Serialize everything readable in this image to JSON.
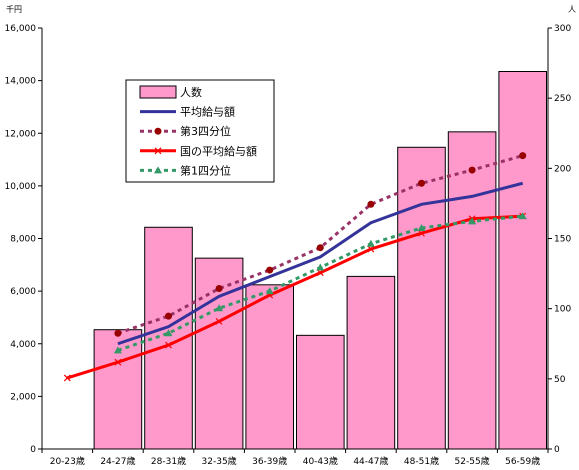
{
  "chart_data": {
    "type": "bar",
    "title": "",
    "y_left_unit": "千円",
    "y_right_unit": "人",
    "categories": [
      "20-23歳",
      "24-27歳",
      "28-31歳",
      "32-35歳",
      "36-39歳",
      "40-43歳",
      "44-47歳",
      "48-51歳",
      "52-55歳",
      "56-59歳"
    ],
    "ylim_left": [
      0,
      16000
    ],
    "ylim_right": [
      0,
      300
    ],
    "y_left_ticks": [
      "0",
      "2,000",
      "4,000",
      "6,000",
      "8,000",
      "10,000",
      "12,000",
      "14,000",
      "16,000"
    ],
    "y_right_ticks": [
      "0",
      "50",
      "100",
      "150",
      "200",
      "250",
      "300"
    ],
    "grid": false,
    "legend_position": "top-left",
    "series": [
      {
        "name": "人数",
        "kind": "bar",
        "axis": "right",
        "color": "#ff99cc",
        "values": [
          0,
          85,
          158,
          136,
          117,
          81,
          123,
          215,
          226,
          269
        ]
      },
      {
        "name": "平均給与額",
        "kind": "line",
        "axis": "left",
        "color": "#333399",
        "values": [
          null,
          4000,
          4650,
          5800,
          6550,
          7300,
          8600,
          9300,
          9600,
          10100
        ]
      },
      {
        "name": "第3四分位",
        "kind": "dotted-marker",
        "axis": "left",
        "color": "#993366",
        "marker_color": "#990000",
        "values": [
          null,
          4400,
          5050,
          6100,
          6800,
          7650,
          9300,
          10100,
          10600,
          11150
        ]
      },
      {
        "name": "国の平均給与額",
        "kind": "line-x",
        "axis": "left",
        "color": "#ff0000",
        "values": [
          2700,
          3300,
          3950,
          4850,
          5850,
          6700,
          7600,
          8200,
          8750,
          8850
        ]
      },
      {
        "name": "第1四分位",
        "kind": "dotted-triangle",
        "axis": "left",
        "color": "#339966",
        "values": [
          null,
          3750,
          4400,
          5350,
          6000,
          6900,
          7800,
          8400,
          8650,
          8850
        ]
      }
    ]
  }
}
